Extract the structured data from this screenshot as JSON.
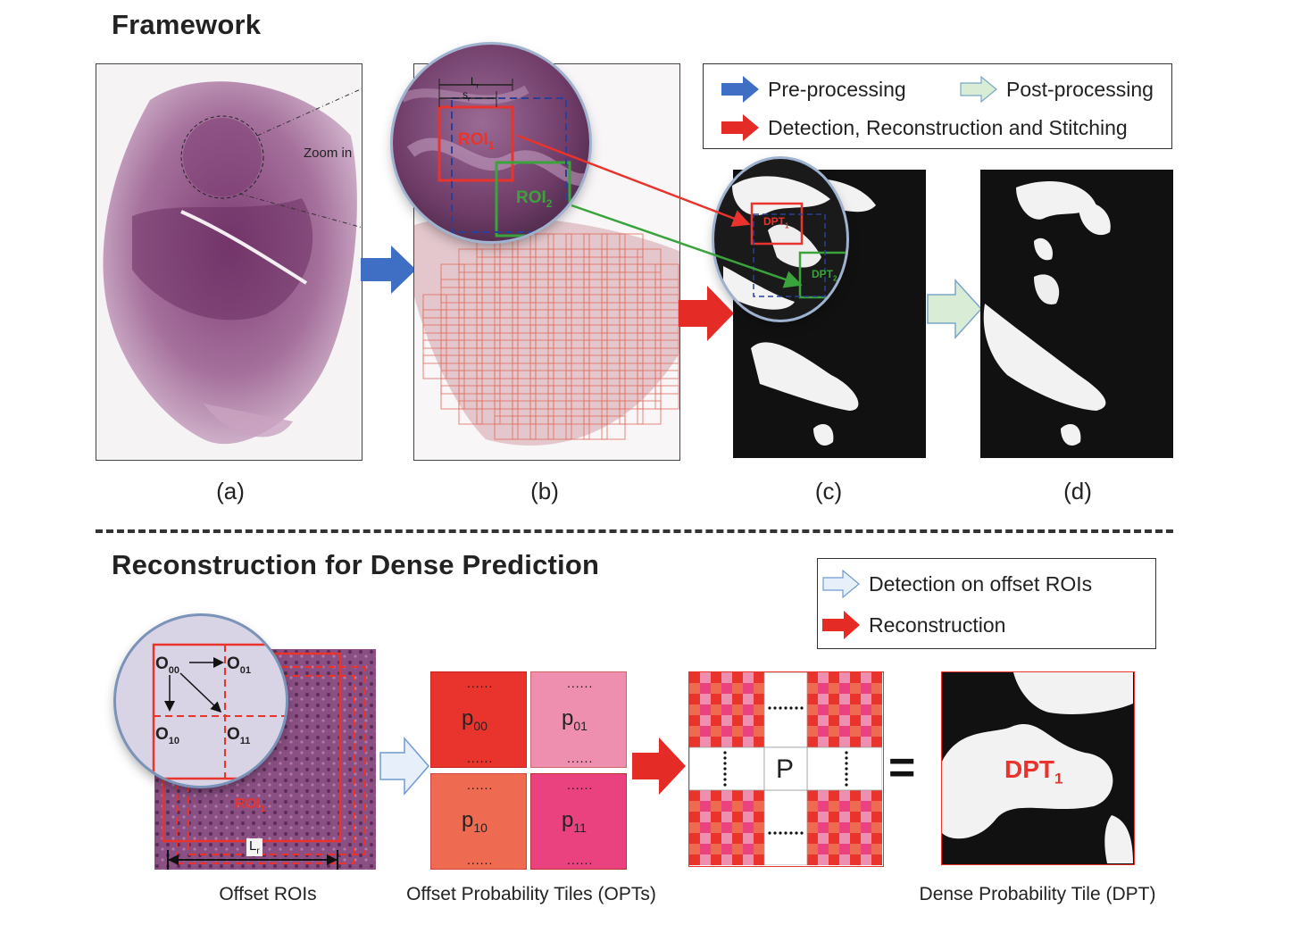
{
  "framework": {
    "title": "Framework",
    "panel_labels": [
      "(a)",
      "(b)",
      "(c)",
      "(d)"
    ],
    "zoom_label": "Zoom in",
    "roi1": "ROI",
    "roi1_sub": "1",
    "roi2": "ROI",
    "roi2_sub": "2",
    "lr": "L",
    "lr_sub": "r",
    "sr": "s",
    "sr_sub": "r",
    "dpt1": "DPT",
    "dpt1_sub": "1",
    "dpt2": "DPT",
    "dpt2_sub": "2",
    "legend": {
      "pre": "Pre-processing",
      "post": "Post-processing",
      "detect": "Detection, Reconstruction and Stitching"
    },
    "colors": {
      "pre_arrow": "#3f6fc4",
      "post_arrow": "#d9ecd6",
      "detect_arrow": "#e42b25"
    }
  },
  "reconstruction": {
    "title": "Reconstruction for Dense Prediction",
    "legend": {
      "detect_offset": "Detection on offset ROIs",
      "recon": "Reconstruction"
    },
    "offsets": {
      "o00": "O",
      "o00_sub": "00",
      "o01": "O",
      "o01_sub": "01",
      "o10": "O",
      "o10_sub": "10",
      "o11": "O",
      "o11_sub": "11"
    },
    "roi1": "ROI",
    "roi1_sub": "1",
    "lr": "L",
    "lr_sub": "r",
    "tiles": {
      "p00": "p",
      "p00_sub": "00",
      "p01": "p",
      "p01_sub": "01",
      "p10": "p",
      "p10_sub": "10",
      "p11": "p",
      "p11_sub": "11"
    },
    "p_label": "P",
    "equals": "=",
    "dpt": "DPT",
    "dpt_sub": "1",
    "captions": {
      "offset_rois": "Offset ROIs",
      "opts": "Offset Probability Tiles (OPTs)",
      "dpt": "Dense Probability Tile (DPT)"
    },
    "colors": {
      "p00": "#e8342c",
      "p01": "#ef8fb0",
      "p10": "#ee6a50",
      "p11": "#e9427f"
    }
  }
}
